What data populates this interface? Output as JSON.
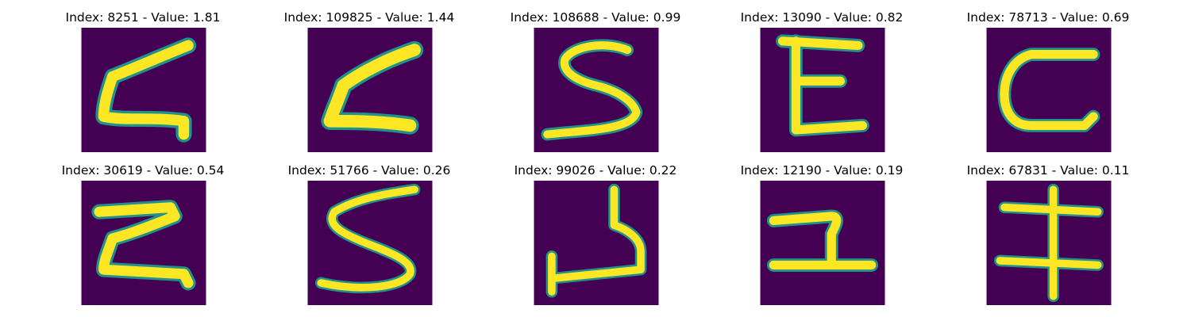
{
  "colors": {
    "background": "#440154",
    "stroke": "#fde725",
    "edge": "#21918c"
  },
  "panels": [
    {
      "title": "Index: 8251 - Value: 1.81"
    },
    {
      "title": "Index: 109825 - Value: 1.44"
    },
    {
      "title": "Index: 108688 - Value: 0.99"
    },
    {
      "title": "Index: 13090 - Value: 0.82"
    },
    {
      "title": "Index: 78713 - Value: 0.69"
    },
    {
      "title": "Index: 30619 - Value: 0.54"
    },
    {
      "title": "Index: 51766 - Value: 0.26"
    },
    {
      "title": "Index: 99026 - Value: 0.22"
    },
    {
      "title": "Index: 12190 - Value: 0.19"
    },
    {
      "title": "Index: 67831 - Value: 0.11"
    }
  ]
}
